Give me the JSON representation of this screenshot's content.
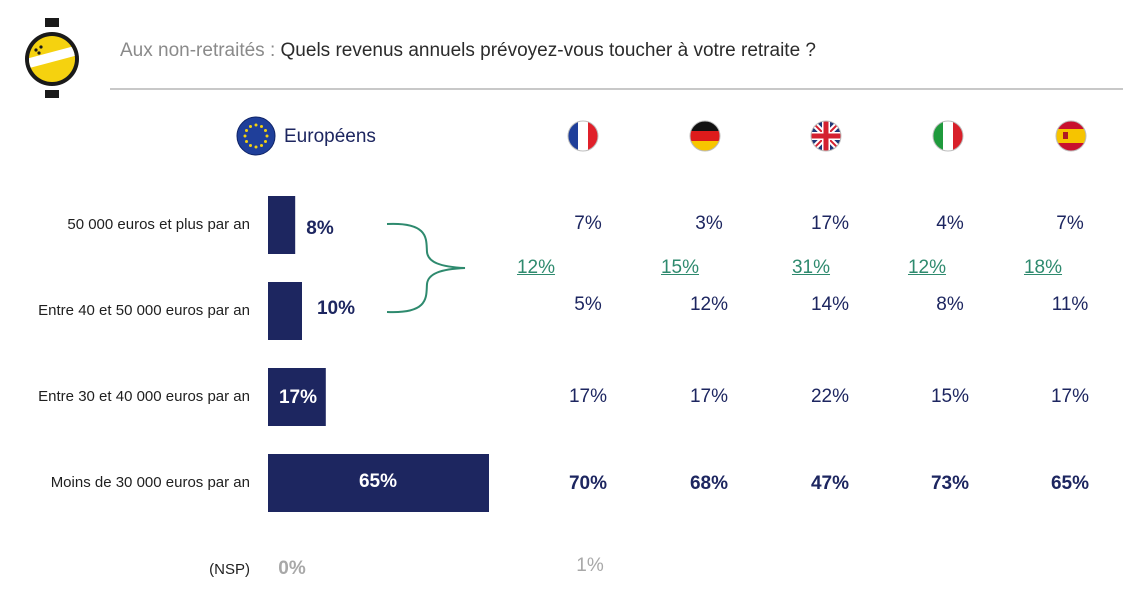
{
  "header": {
    "prefix": "Aux non-retraités : ",
    "question": "Quels revenus annuels prévoyez-vous toucher à votre retraite ?"
  },
  "colors": {
    "bar": "#1d2660",
    "bracket": "#2e8a6e",
    "logo_yellow": "#f5d20f",
    "rule": "#c8c8c8"
  },
  "icons": [
    "logo-icon",
    "eu-flag-icon",
    "france-flag-icon",
    "germany-flag-icon",
    "uk-flag-icon",
    "italy-flag-icon",
    "spain-flag-icon"
  ],
  "europe_label": "Européens",
  "chart_data": {
    "type": "bar",
    "orientation": "horizontal",
    "categories": [
      "50 000 euros et plus par an",
      "Entre 40 et 50 000 euros par an",
      "Entre 30 et 40 000 euros par an",
      "Moins de 30 000 euros par an",
      "(NSP)"
    ],
    "series": [
      {
        "name": "Européens",
        "values": [
          8,
          10,
          17,
          65,
          0
        ]
      }
    ],
    "value_labels": [
      "8%",
      "10%",
      "17%",
      "65%",
      "0%"
    ],
    "xlim": [
      0,
      100
    ],
    "countries": [
      {
        "flag": "france-flag-icon",
        "values": [
          "7%",
          "5%",
          "17%",
          "70%",
          "1%"
        ],
        "grouped": "12%"
      },
      {
        "flag": "germany-flag-icon",
        "values": [
          "3%",
          "12%",
          "17%",
          "68%",
          ""
        ],
        "grouped": "15%"
      },
      {
        "flag": "uk-flag-icon",
        "values": [
          "17%",
          "14%",
          "22%",
          "47%",
          ""
        ],
        "grouped": "31%"
      },
      {
        "flag": "italy-flag-icon",
        "values": [
          "4%",
          "8%",
          "15%",
          "73%",
          ""
        ],
        "grouped": "12%"
      },
      {
        "flag": "spain-flag-icon",
        "values": [
          "7%",
          "11%",
          "17%",
          "65%",
          ""
        ],
        "grouped": "18%"
      }
    ],
    "grid": false,
    "legend": "none"
  }
}
